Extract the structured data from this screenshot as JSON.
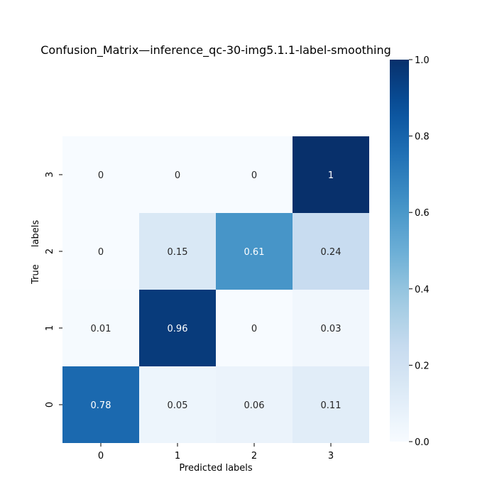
{
  "chart_data": {
    "type": "heatmap",
    "title": "Confusion_Matrix—inference_qc-30-img5.1.1-label-smoothing",
    "xlabel": "Predicted labels",
    "ylabel_parts": [
      "True",
      "labels"
    ],
    "x_categories": [
      "0",
      "1",
      "2",
      "3"
    ],
    "y_categories": [
      "0",
      "1",
      "2",
      "3"
    ],
    "y_order": "bottom-to-top",
    "matrix": [
      [
        0.78,
        0.05,
        0.06,
        0.11
      ],
      [
        0.01,
        0.96,
        0,
        0.03
      ],
      [
        0,
        0.15,
        0.61,
        0.24
      ],
      [
        0,
        0,
        0,
        1
      ]
    ],
    "colormap": "Blues",
    "vmin": 0.0,
    "vmax": 1.0,
    "colorbar_ticks": [
      "0.0",
      "0.2",
      "0.4",
      "0.6",
      "0.8",
      "1.0"
    ],
    "grid": false,
    "legend": "none"
  }
}
